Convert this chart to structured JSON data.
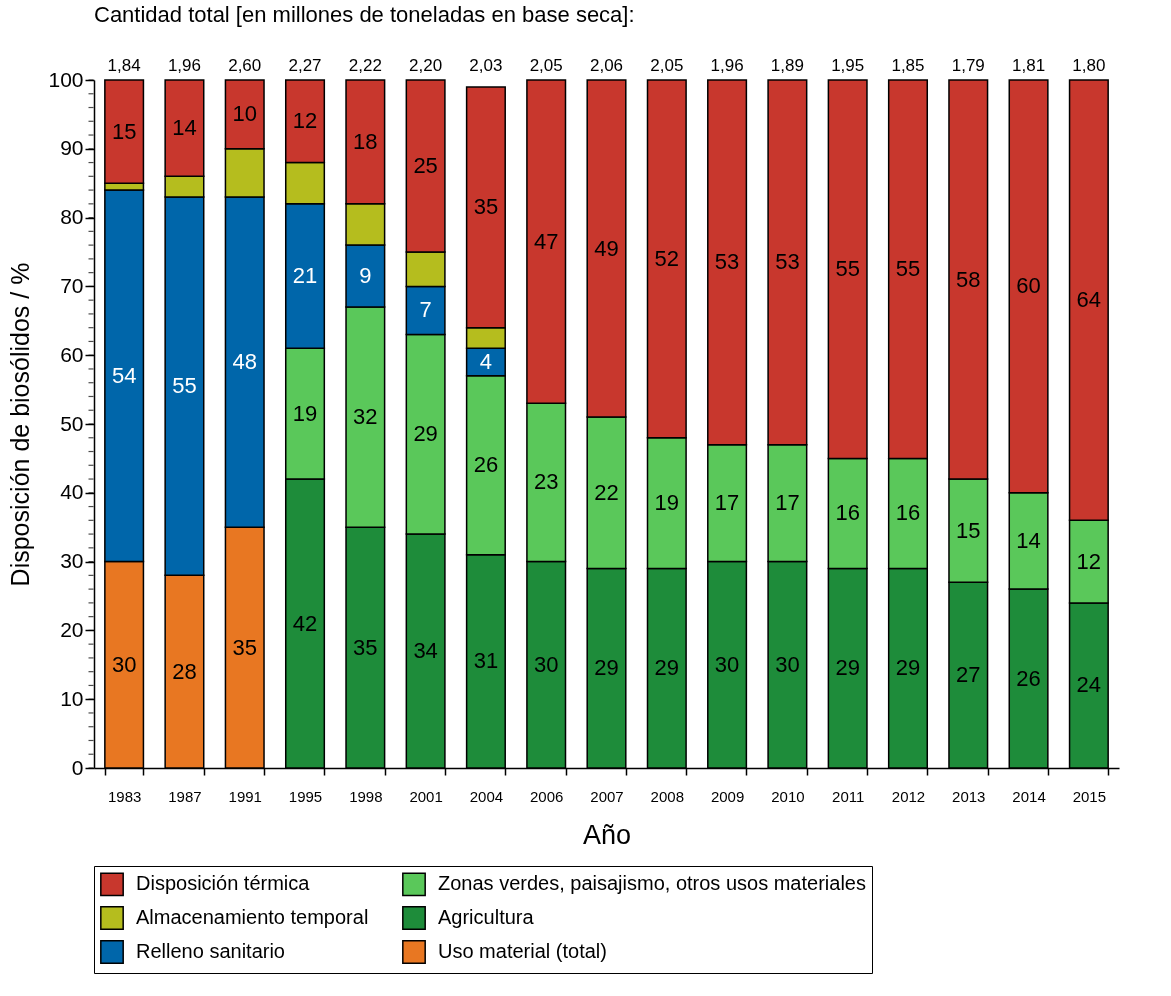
{
  "chart_data": {
    "type": "bar",
    "stacked": true,
    "title": "Cantidad total [en millones de toneladas en base seca]:",
    "xlabel": "Año",
    "ylabel": "Disposición de biosólidos / %",
    "categories": [
      "1983",
      "1987",
      "1991",
      "1995",
      "1998",
      "2001",
      "2004",
      "2006",
      "2007",
      "2008",
      "2009",
      "2010",
      "2011",
      "2012",
      "2013",
      "2014",
      "2015"
    ],
    "annotations": [
      "1,84",
      "1,96",
      "2,60",
      "2,27",
      "2,22",
      "2,20",
      "2,03",
      "2,05",
      "2,06",
      "2,05",
      "1,96",
      "1,89",
      "1,95",
      "1,85",
      "1,79",
      "1,81",
      "1,80"
    ],
    "ylim": [
      0,
      100
    ],
    "yticks": [
      0,
      10,
      20,
      30,
      40,
      50,
      60,
      70,
      80,
      90,
      100
    ],
    "grid": false,
    "legend": "bottom",
    "series": [
      {
        "name": "Uso material (total)",
        "color": "#e87722",
        "values": [
          30,
          28,
          35,
          null,
          null,
          null,
          null,
          null,
          null,
          null,
          null,
          null,
          null,
          null,
          null,
          null,
          null
        ],
        "value_labels": [
          "30",
          "28",
          "35",
          null,
          null,
          null,
          null,
          null,
          null,
          null,
          null,
          null,
          null,
          null,
          null,
          null,
          null
        ]
      },
      {
        "name": "Agricultura",
        "color": "#1e8c3a",
        "values": [
          null,
          null,
          null,
          42,
          35,
          34,
          31,
          30,
          29,
          29,
          30,
          30,
          29,
          29,
          27,
          26,
          24
        ],
        "value_labels": [
          null,
          null,
          null,
          "42",
          "35",
          "34",
          "31",
          "30",
          "29",
          "29",
          "30",
          "30",
          "29",
          "29",
          "27",
          "26",
          "24"
        ]
      },
      {
        "name": "Zonas verdes, paisajismo, otros usos materiales",
        "color": "#5ac85a",
        "values": [
          null,
          null,
          null,
          19,
          32,
          29,
          26,
          23,
          22,
          19,
          17,
          17,
          16,
          16,
          15,
          14,
          12
        ],
        "value_labels": [
          null,
          null,
          null,
          "19",
          "32",
          "29",
          "26",
          "23",
          "22",
          "19",
          "17",
          "17",
          "16",
          "16",
          "15",
          "14",
          "12"
        ]
      },
      {
        "name": "Relleno sanitario",
        "color": "#0066aa",
        "values": [
          54,
          55,
          48,
          21,
          9,
          7,
          4,
          null,
          null,
          null,
          null,
          null,
          null,
          null,
          null,
          null,
          null
        ],
        "value_labels": [
          "54",
          "55",
          "48",
          "21",
          "9",
          "7",
          "4",
          null,
          null,
          null,
          null,
          null,
          null,
          null,
          null,
          null,
          null
        ]
      },
      {
        "name": "Almacenamiento temporal",
        "color": "#b5bd1e",
        "values": [
          1,
          3,
          7,
          6,
          6,
          5,
          3,
          null,
          null,
          null,
          null,
          null,
          null,
          null,
          null,
          null,
          null
        ],
        "value_labels": [
          null,
          null,
          null,
          null,
          null,
          null,
          null,
          null,
          null,
          null,
          null,
          null,
          null,
          null,
          null,
          null,
          null
        ]
      },
      {
        "name": "Disposición térmica",
        "color": "#c8372d",
        "values": [
          15,
          14,
          10,
          12,
          18,
          25,
          35,
          47,
          49,
          52,
          53,
          53,
          55,
          55,
          58,
          60,
          64
        ],
        "value_labels": [
          "15",
          "14",
          "10",
          "12",
          "18",
          "25",
          "35",
          "47",
          "49",
          "52",
          "53",
          "53",
          "55",
          "55",
          "58",
          "60",
          "64"
        ]
      }
    ]
  }
}
